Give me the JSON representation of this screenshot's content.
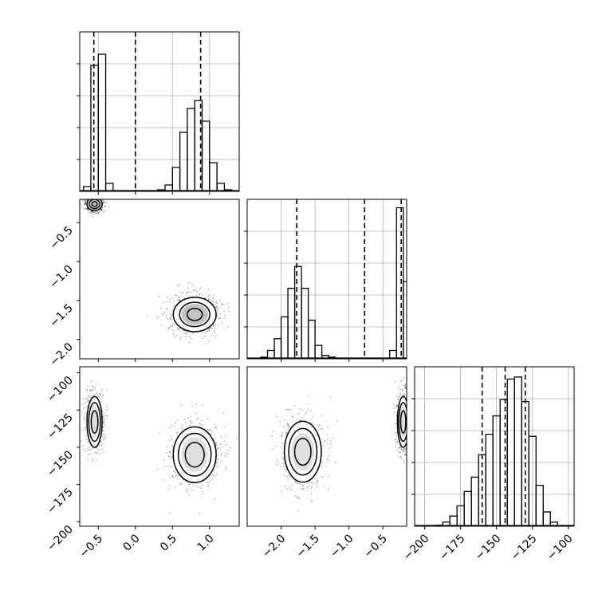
{
  "chart_data": [
    {
      "panel": "histogram-x",
      "type": "bar",
      "x": [
        -0.65,
        -0.55,
        -0.45,
        -0.35,
        0.35,
        0.45,
        0.55,
        0.65,
        0.75,
        0.85,
        0.95,
        1.05,
        1.15,
        1.25
      ],
      "values": [
        0.03,
        0.79,
        0.86,
        0.05,
        0.01,
        0.04,
        0.15,
        0.37,
        0.52,
        0.57,
        0.44,
        0.18,
        0.05,
        0.01
      ],
      "vlines": [
        -0.56,
        0.0,
        0.88
      ],
      "xlim": [
        -0.75,
        1.4
      ],
      "ylim": [
        0,
        1
      ],
      "grid": true
    },
    {
      "panel": "histogram-y",
      "type": "bar",
      "x": [
        -2.25,
        -2.15,
        -2.05,
        -1.95,
        -1.85,
        -1.75,
        -1.65,
        -1.55,
        -1.45,
        -1.35,
        -1.25,
        -0.35,
        -0.25,
        -0.15
      ],
      "values": [
        0.01,
        0.05,
        0.12,
        0.25,
        0.42,
        0.55,
        0.42,
        0.23,
        0.08,
        0.02,
        0.01,
        0.05,
        0.9,
        0.46
      ],
      "vlines": [
        -1.77,
        -0.77,
        -0.23
      ],
      "xlim": [
        -2.5,
        -0.15
      ],
      "ylim": [
        0,
        0.95
      ],
      "grid": true
    },
    {
      "panel": "histogram-z",
      "type": "bar",
      "x": [
        -200,
        -195,
        -190,
        -185,
        -180,
        -175,
        -170,
        -165,
        -160,
        -155,
        -150,
        -145,
        -140,
        -135,
        -130,
        -125,
        -120,
        -115,
        -110,
        -105
      ],
      "values": [
        0.0,
        0.0,
        0.005,
        0.02,
        0.05,
        0.1,
        0.17,
        0.24,
        0.35,
        0.45,
        0.54,
        0.62,
        0.72,
        0.73,
        0.61,
        0.44,
        0.2,
        0.07,
        0.02,
        0.0
      ],
      "vlines": [
        -160,
        -144,
        -130
      ],
      "xlim": [
        -207,
        -96
      ],
      "ylim": [
        0,
        0.78
      ],
      "xticks": [
        "−200",
        "−175",
        "−150",
        "−125",
        "−100"
      ],
      "grid": true
    },
    {
      "panel": "scatter-x-y",
      "type": "scatter",
      "clusters": [
        {
          "center": [
            -0.55,
            -0.26
          ],
          "spread": [
            0.06,
            0.05
          ]
        },
        {
          "center": [
            0.8,
            -1.68
          ],
          "spread": [
            0.17,
            0.13
          ]
        }
      ],
      "xlim": [
        -0.75,
        1.4
      ],
      "ylim": [
        -2.25,
        -0.2
      ],
      "yticks": [
        "−0.5",
        "−1.0",
        "−1.5",
        "−2.0"
      ]
    },
    {
      "panel": "scatter-x-z",
      "type": "scatter",
      "clusters": [
        {
          "center": [
            -0.55,
            -133
          ],
          "spread": [
            0.06,
            10
          ]
        },
        {
          "center": [
            0.8,
            -155
          ],
          "spread": [
            0.17,
            11
          ]
        }
      ],
      "xlim": [
        -0.75,
        1.4
      ],
      "ylim": [
        -203,
        -96
      ],
      "xticks": [
        "−0.5",
        "0.0",
        "0.5",
        "1.0"
      ],
      "yticks": [
        "−100",
        "−125",
        "−150",
        "−175",
        "−200"
      ]
    },
    {
      "panel": "scatter-y-z",
      "type": "scatter",
      "clusters": [
        {
          "center": [
            -1.68,
            -153
          ],
          "spread": [
            0.16,
            12
          ]
        },
        {
          "center": [
            -0.2,
            -133
          ],
          "spread": [
            0.05,
            10
          ]
        }
      ],
      "xlim": [
        -2.5,
        -0.15
      ],
      "ylim": [
        -203,
        -96
      ],
      "xticks": [
        "−2.0",
        "−1.5",
        "−1.0",
        "−0.5"
      ]
    }
  ]
}
